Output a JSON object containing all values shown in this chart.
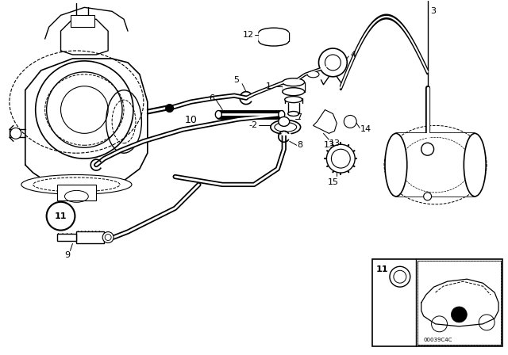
{
  "bg_color": "#ffffff",
  "line_color": "#000000",
  "fig_width": 6.4,
  "fig_height": 4.48,
  "dpi": 100,
  "watermark": "00039C4C"
}
